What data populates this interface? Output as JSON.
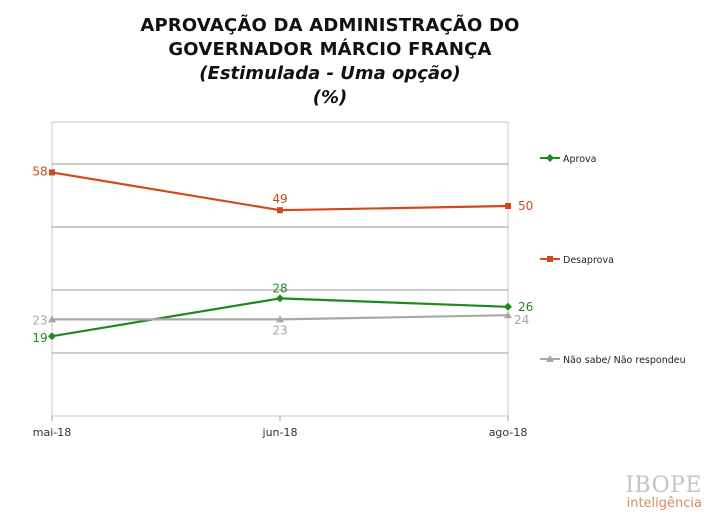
{
  "chart_data": {
    "type": "line",
    "title": [
      "APROVAÇÃO DA ADMINISTRAÇÃO DO",
      "GOVERNADOR MÁRCIO FRANÇA"
    ],
    "subtitle": "(Estimulada - Uma opção)",
    "unit": "(%)",
    "categories": [
      "mai-18",
      "jun-18",
      "ago-18"
    ],
    "ylim": [
      0,
      70
    ],
    "grid": true,
    "legend_placement": "right",
    "series": [
      {
        "name": "Aprova",
        "values": [
          19,
          28,
          26
        ],
        "color": "#1f8a1f",
        "marker": "diamond"
      },
      {
        "name": "Desaprova",
        "values": [
          58,
          49,
          50
        ],
        "color": "#d14a1c",
        "marker": "square"
      },
      {
        "name": "Não sabe/ Não respondeu",
        "values": [
          23,
          23,
          24
        ],
        "color": "#a8a8a8",
        "marker": "triangle"
      }
    ],
    "data_labels": [
      [
        "19",
        "28",
        "26"
      ],
      [
        "58",
        "49",
        "50"
      ],
      [
        "23",
        "23",
        "24"
      ]
    ]
  },
  "brand": {
    "name": "IBOPE",
    "sub": "inteligência"
  }
}
